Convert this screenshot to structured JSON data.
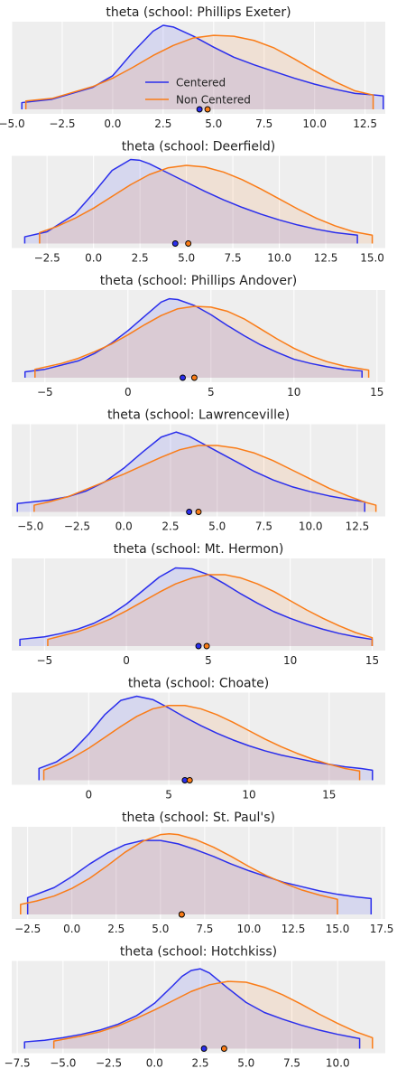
{
  "colors": {
    "centered": "#2a2eec",
    "non_centered": "#fa7c17",
    "panel_bg": "#eeeeee",
    "grid": "#ffffff"
  },
  "legend": {
    "entries": [
      "Centered",
      "Non Centered"
    ],
    "location": "lower-center of first panel"
  },
  "chart_data": [
    {
      "type": "area",
      "title": "theta (school: Phillips Exeter)",
      "xlim": [
        -5.0,
        13.5
      ],
      "ticks": [
        -5.0,
        -2.5,
        0.0,
        2.5,
        5.0,
        7.5,
        10.0,
        12.5
      ],
      "tick_labels": [
        "−5.0",
        "−2.5",
        "0.0",
        "2.5",
        "5.0",
        "7.5",
        "10.0",
        "12.5"
      ],
      "grid": true,
      "series": [
        {
          "name": "Centered",
          "x": [
            -4.5,
            -3,
            -1,
            0,
            1,
            2,
            2.5,
            3,
            4,
            5,
            6,
            7,
            8,
            9,
            10,
            11,
            12,
            13,
            13.4
          ],
          "density": [
            0.08,
            0.12,
            0.26,
            0.4,
            0.68,
            0.93,
            1.0,
            0.98,
            0.87,
            0.74,
            0.62,
            0.53,
            0.45,
            0.37,
            0.3,
            0.24,
            0.19,
            0.17,
            0.16
          ],
          "mean": 4.3
        },
        {
          "name": "Non Centered",
          "x": [
            -4.3,
            -3,
            -1,
            0,
            1,
            2,
            3,
            4,
            5,
            6,
            7,
            8,
            9,
            10,
            11,
            12,
            12.9
          ],
          "density": [
            0.1,
            0.13,
            0.27,
            0.37,
            0.5,
            0.64,
            0.76,
            0.85,
            0.88,
            0.87,
            0.82,
            0.73,
            0.6,
            0.46,
            0.33,
            0.22,
            0.17
          ],
          "mean": 4.7
        }
      ]
    },
    {
      "type": "area",
      "title": "theta (school: Deerfield)",
      "xlim": [
        -4.4,
        15.7
      ],
      "ticks": [
        -2.5,
        0.0,
        2.5,
        5.0,
        7.5,
        10.0,
        12.5,
        15.0
      ],
      "tick_labels": [
        "−2.5",
        "0.0",
        "2.5",
        "5.0",
        "7.5",
        "10.0",
        "12.5",
        "15.0"
      ],
      "grid": true,
      "series": [
        {
          "name": "Centered",
          "x": [
            -3.7,
            -2.5,
            -1,
            0,
            1,
            2,
            2.5,
            3,
            4,
            5,
            6,
            7,
            8,
            9,
            10,
            11,
            12,
            13,
            14.2
          ],
          "density": [
            0.08,
            0.14,
            0.35,
            0.6,
            0.87,
            1.0,
            0.99,
            0.95,
            0.84,
            0.73,
            0.62,
            0.52,
            0.43,
            0.35,
            0.28,
            0.22,
            0.17,
            0.13,
            0.1
          ],
          "mean": 4.4
        },
        {
          "name": "Non Centered",
          "x": [
            -2.9,
            -2,
            -1,
            0,
            1,
            2,
            3,
            4,
            5,
            6,
            7,
            8,
            9,
            10,
            11,
            12,
            13,
            14,
            15
          ],
          "density": [
            0.13,
            0.2,
            0.3,
            0.42,
            0.56,
            0.7,
            0.82,
            0.9,
            0.93,
            0.91,
            0.85,
            0.76,
            0.65,
            0.53,
            0.41,
            0.3,
            0.21,
            0.14,
            0.1
          ],
          "mean": 5.1
        }
      ]
    },
    {
      "type": "area",
      "title": "theta (school: Phillips Andover)",
      "xlim": [
        -7.0,
        15.5
      ],
      "ticks": [
        -5,
        0,
        5,
        10,
        15
      ],
      "tick_labels": [
        "−5",
        "0",
        "5",
        "10",
        "15"
      ],
      "grid": true,
      "series": [
        {
          "name": "Centered",
          "x": [
            -6.2,
            -5,
            -3,
            -2,
            -1,
            0,
            1,
            2,
            2.5,
            3,
            4,
            5,
            6,
            7,
            8,
            9,
            10,
            11,
            12,
            13,
            14.1
          ],
          "density": [
            0.07,
            0.1,
            0.2,
            0.29,
            0.41,
            0.56,
            0.73,
            0.9,
            0.94,
            0.93,
            0.86,
            0.75,
            0.62,
            0.5,
            0.39,
            0.3,
            0.22,
            0.17,
            0.13,
            0.1,
            0.08
          ],
          "mean": 3.3
        },
        {
          "name": "Non Centered",
          "x": [
            -5.6,
            -4,
            -3,
            -2,
            -1,
            0,
            1,
            2,
            3,
            4,
            5,
            6,
            7,
            8,
            9,
            10,
            11,
            12,
            13,
            14.5
          ],
          "density": [
            0.1,
            0.17,
            0.23,
            0.31,
            0.4,
            0.51,
            0.63,
            0.74,
            0.82,
            0.85,
            0.84,
            0.79,
            0.7,
            0.58,
            0.46,
            0.35,
            0.26,
            0.19,
            0.14,
            0.09
          ],
          "mean": 4.0
        }
      ]
    },
    {
      "type": "area",
      "title": "theta (school: Lawrenceville)",
      "xlim": [
        -6.0,
        14.0
      ],
      "ticks": [
        -5.0,
        -2.5,
        0.0,
        2.5,
        5.0,
        7.5,
        10.0,
        12.5
      ],
      "tick_labels": [
        "−5.0",
        "−2.5",
        "0.0",
        "2.5",
        "5.0",
        "7.5",
        "10.0",
        "12.5"
      ],
      "grid": true,
      "series": [
        {
          "name": "Centered",
          "x": [
            -5.7,
            -4,
            -3,
            -2,
            -1,
            0,
            1,
            2,
            2.8,
            3.5,
            4,
            5,
            6,
            7,
            8,
            9,
            10,
            11,
            12,
            12.9
          ],
          "density": [
            0.1,
            0.14,
            0.18,
            0.25,
            0.36,
            0.52,
            0.71,
            0.89,
            0.95,
            0.9,
            0.84,
            0.72,
            0.6,
            0.48,
            0.38,
            0.3,
            0.24,
            0.19,
            0.15,
            0.12
          ],
          "mean": 3.5
        },
        {
          "name": "Non Centered",
          "x": [
            -4.8,
            -4,
            -3,
            -2,
            -1,
            0,
            1,
            2,
            3,
            4,
            5,
            6,
            7,
            8,
            9,
            10,
            11,
            12,
            13,
            13.5
          ],
          "density": [
            0.08,
            0.12,
            0.18,
            0.27,
            0.36,
            0.45,
            0.55,
            0.65,
            0.74,
            0.79,
            0.79,
            0.76,
            0.7,
            0.61,
            0.5,
            0.39,
            0.28,
            0.19,
            0.11,
            0.08
          ],
          "mean": 4.0
        }
      ]
    },
    {
      "type": "area",
      "title": "theta (school: Mt. Hermon)",
      "xlim": [
        -7.0,
        15.8
      ],
      "ticks": [
        -5,
        0,
        5,
        10,
        15
      ],
      "tick_labels": [
        "−5",
        "0",
        "5",
        "10",
        "15"
      ],
      "grid": true,
      "series": [
        {
          "name": "Centered",
          "x": [
            -6.5,
            -5,
            -4,
            -3,
            -2,
            -1,
            0,
            1,
            2,
            3,
            4,
            5,
            6,
            7,
            8,
            9,
            10,
            11,
            12,
            13,
            14,
            15
          ],
          "density": [
            0.08,
            0.11,
            0.15,
            0.2,
            0.27,
            0.37,
            0.5,
            0.66,
            0.82,
            0.93,
            0.92,
            0.85,
            0.74,
            0.62,
            0.51,
            0.41,
            0.33,
            0.26,
            0.2,
            0.15,
            0.11,
            0.08
          ],
          "mean": 4.4
        },
        {
          "name": "Non Centered",
          "x": [
            -4.8,
            -4,
            -3,
            -2,
            -1,
            0,
            1,
            2,
            3,
            4,
            5,
            6,
            7,
            8,
            9,
            10,
            11,
            12,
            13,
            14,
            15
          ],
          "density": [
            0.08,
            0.12,
            0.17,
            0.24,
            0.32,
            0.42,
            0.53,
            0.64,
            0.74,
            0.81,
            0.85,
            0.85,
            0.81,
            0.74,
            0.65,
            0.54,
            0.43,
            0.33,
            0.24,
            0.16,
            0.1
          ],
          "mean": 4.9
        }
      ]
    },
    {
      "type": "area",
      "title": "theta (school: Choate)",
      "xlim": [
        -4.8,
        18.5
      ],
      "ticks": [
        0,
        5,
        10,
        15
      ],
      "tick_labels": [
        "0",
        "5",
        "10",
        "15"
      ],
      "grid": true,
      "series": [
        {
          "name": "Centered",
          "x": [
            -3.1,
            -2,
            -1,
            0,
            1,
            2,
            3,
            4,
            5,
            6,
            7,
            8,
            9,
            10,
            11,
            12,
            13,
            14,
            15,
            16,
            17,
            17.7
          ],
          "density": [
            0.14,
            0.22,
            0.35,
            0.55,
            0.78,
            0.95,
            1.0,
            0.96,
            0.86,
            0.75,
            0.65,
            0.56,
            0.48,
            0.41,
            0.35,
            0.3,
            0.26,
            0.22,
            0.19,
            0.16,
            0.14,
            0.12
          ],
          "mean": 6.0
        },
        {
          "name": "Non Centered",
          "x": [
            -2.8,
            -2,
            -1,
            0,
            1,
            2,
            3,
            4,
            5,
            6,
            7,
            8,
            9,
            10,
            11,
            12,
            13,
            14,
            15,
            16,
            16.9
          ],
          "density": [
            0.12,
            0.18,
            0.27,
            0.38,
            0.51,
            0.64,
            0.76,
            0.85,
            0.89,
            0.89,
            0.85,
            0.78,
            0.69,
            0.59,
            0.49,
            0.4,
            0.32,
            0.25,
            0.19,
            0.14,
            0.11
          ],
          "mean": 6.3
        }
      ]
    },
    {
      "type": "area",
      "title": "theta (school: St. Paul's)",
      "xlim": [
        -3.4,
        17.7
      ],
      "ticks": [
        -2.5,
        0.0,
        2.5,
        5.0,
        7.5,
        10.0,
        12.5,
        15.0,
        17.5
      ],
      "tick_labels": [
        "−2.5",
        "0.0",
        "2.5",
        "5.0",
        "7.5",
        "10.0",
        "12.5",
        "15.0",
        "17.5"
      ],
      "grid": true,
      "series": [
        {
          "name": "Centered",
          "x": [
            -2.5,
            -1,
            0,
            1,
            2,
            3,
            4,
            5,
            6,
            7,
            8,
            9,
            10,
            11,
            12,
            13,
            14,
            15,
            16,
            16.9
          ],
          "density": [
            0.2,
            0.32,
            0.45,
            0.6,
            0.73,
            0.83,
            0.88,
            0.88,
            0.84,
            0.77,
            0.69,
            0.6,
            0.52,
            0.45,
            0.38,
            0.33,
            0.28,
            0.24,
            0.21,
            0.19
          ],
          "mean": 6.2
        },
        {
          "name": "Non Centered",
          "x": [
            -2.9,
            -2,
            -1,
            0,
            1,
            2,
            3,
            4,
            5,
            5.5,
            6,
            7,
            8,
            9,
            10,
            11,
            12,
            13,
            14,
            15
          ],
          "density": [
            0.12,
            0.16,
            0.22,
            0.31,
            0.43,
            0.58,
            0.74,
            0.87,
            0.95,
            0.96,
            0.95,
            0.89,
            0.8,
            0.69,
            0.57,
            0.46,
            0.37,
            0.29,
            0.23,
            0.18
          ],
          "mean": 6.2
        }
      ]
    },
    {
      "type": "area",
      "title": "theta (school: Hotchkiss)",
      "xlim": [
        -7.8,
        12.6
      ],
      "ticks": [
        -7.5,
        -5.0,
        -2.5,
        0.0,
        2.5,
        5.0,
        7.5,
        10.0
      ],
      "tick_labels": [
        "−7.5",
        "−5.0",
        "−2.5",
        "0.0",
        "2.5",
        "5.0",
        "7.5",
        "10.0"
      ],
      "grid": true,
      "series": [
        {
          "name": "Centered",
          "x": [
            -7.1,
            -6,
            -5,
            -4,
            -3,
            -2,
            -1,
            0,
            1,
            1.5,
            2,
            2.5,
            3,
            4,
            5,
            6,
            7,
            8,
            9,
            10,
            11.2
          ],
          "density": [
            0.08,
            0.1,
            0.13,
            0.17,
            0.22,
            0.29,
            0.39,
            0.54,
            0.75,
            0.86,
            0.93,
            0.95,
            0.9,
            0.72,
            0.55,
            0.43,
            0.35,
            0.28,
            0.22,
            0.17,
            0.12
          ],
          "mean": 2.7
        },
        {
          "name": "Non Centered",
          "x": [
            -5.5,
            -4,
            -3,
            -2,
            -1,
            0,
            1,
            2,
            3,
            4,
            5,
            6,
            7,
            8,
            9,
            10,
            11,
            11.9
          ],
          "density": [
            0.09,
            0.15,
            0.2,
            0.27,
            0.36,
            0.46,
            0.57,
            0.68,
            0.76,
            0.8,
            0.79,
            0.73,
            0.64,
            0.53,
            0.41,
            0.3,
            0.2,
            0.13
          ],
          "mean": 3.8
        }
      ]
    }
  ]
}
